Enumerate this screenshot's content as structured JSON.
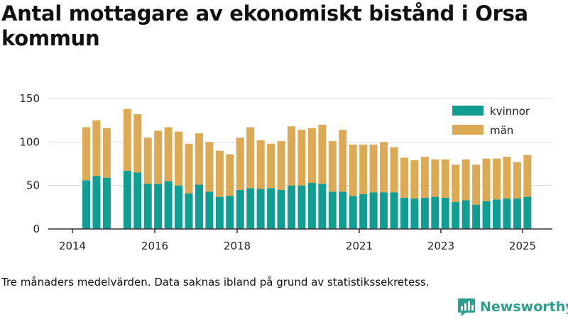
{
  "chart_data": {
    "type": "bar",
    "stacked": true,
    "title": "Antal mottagare av ekonomiskt bistånd i Orsa kommun",
    "x_ticks": [
      "2014",
      "2016",
      "2018",
      "2021",
      "2023",
      "2025"
    ],
    "ylim": [
      0,
      150
    ],
    "y_ticks": [
      "0",
      "50",
      "100",
      "150"
    ],
    "grid": true,
    "legend_placement": "top-right",
    "series": [
      {
        "name": "kvinnor",
        "color": "#0f9e91",
        "values": [
          56,
          61,
          59,
          null,
          67,
          65,
          52,
          52,
          55,
          50,
          41,
          51,
          43,
          37,
          38,
          45,
          47,
          46,
          47,
          45,
          50,
          50,
          53,
          52,
          43,
          43,
          38,
          40,
          42,
          42,
          42,
          36,
          35,
          36,
          37,
          36,
          31,
          33,
          28,
          32,
          34,
          35,
          35,
          37
        ]
      },
      {
        "name": "män",
        "color": "#dcaa55",
        "values": [
          61,
          64,
          57,
          null,
          71,
          67,
          53,
          61,
          62,
          62,
          57,
          59,
          57,
          53,
          48,
          60,
          70,
          56,
          51,
          56,
          68,
          64,
          63,
          68,
          58,
          71,
          59,
          57,
          55,
          58,
          52,
          46,
          44,
          47,
          43,
          44,
          43,
          47,
          46,
          49,
          47,
          48,
          42,
          48
        ]
      }
    ]
  },
  "footnote": "Tre månaders medelvärden. Data saknas ibland på grund av statistikssekretess.",
  "brand": {
    "name": "Newsworthy",
    "icon": "newsworthy-chart-icon",
    "color": "#2f9e8f"
  }
}
